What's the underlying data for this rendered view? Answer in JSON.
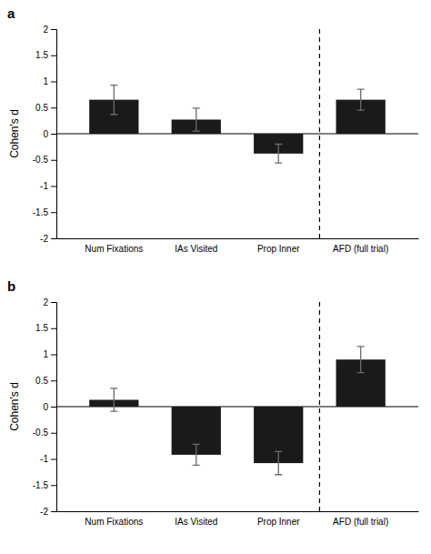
{
  "chart_data": [
    {
      "type": "bar",
      "title": "a",
      "categories": [
        "Num Fixations",
        "IAs Visited",
        "Prop Inner",
        "AFD (full trial)"
      ],
      "values": [
        0.65,
        0.27,
        -0.38,
        0.65
      ],
      "errors": [
        0.28,
        0.22,
        0.18,
        0.2
      ],
      "color": "#1a1a1a",
      "ylabel": "Cohen's d",
      "ylim": [
        -2,
        2
      ],
      "yticks": [
        -2,
        -1.5,
        -1,
        -0.5,
        0,
        0.5,
        1,
        1.5,
        2
      ],
      "grid": false
    },
    {
      "type": "bar",
      "title": "b",
      "categories": [
        "Num Fixations",
        "IAs Visited",
        "Prop Inner",
        "AFD (full trial)"
      ],
      "values": [
        0.13,
        -0.92,
        -1.08,
        0.9
      ],
      "errors": [
        0.22,
        0.2,
        0.22,
        0.25
      ],
      "color": "#1a1a1a",
      "ylabel": "Cohen's d",
      "ylim": [
        -2,
        2
      ],
      "yticks": [
        -2,
        -1.5,
        -1,
        -0.5,
        0,
        0.5,
        1,
        1.5,
        2
      ],
      "grid": false
    }
  ]
}
